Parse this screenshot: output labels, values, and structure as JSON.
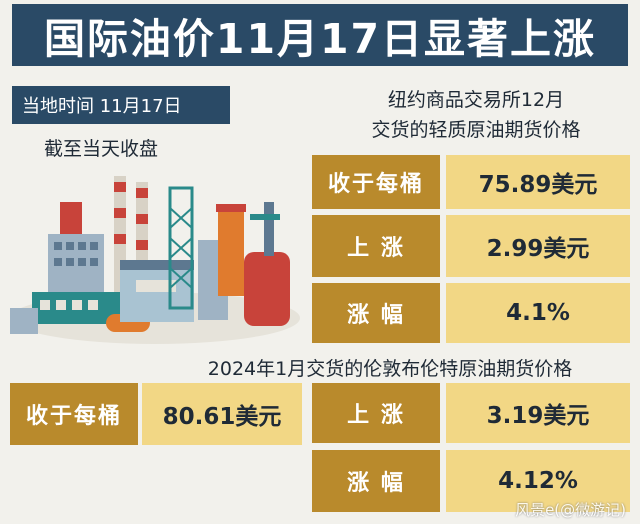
{
  "title": "国际油价11月17日显著上涨",
  "local_time": "当地时间  11月17日",
  "close_note": "截至当天收盘",
  "nymex": {
    "title_line1": "纽约商品交易所12月",
    "title_line2": "交货的轻质原油期货价格",
    "rows": [
      {
        "label": "收于每桶",
        "value": "75.89美元"
      },
      {
        "label": "上 涨",
        "value": "2.99美元"
      },
      {
        "label": "涨 幅",
        "value": "4.1%"
      }
    ]
  },
  "brent": {
    "title": "2024年1月交货的伦敦布伦特原油期货价格",
    "close_label": "收于每桶",
    "close_value": "80.61美元",
    "rise_label": "上 涨",
    "rise_value": "3.19美元",
    "pct_label": "涨 幅",
    "pct_value": "4.12%"
  },
  "watermark": "风景e(@微游记)",
  "colors": {
    "navy": "#2a4a66",
    "gold": "#b98a2c",
    "light_gold": "#f2d785",
    "background": "#f2f1ec"
  }
}
